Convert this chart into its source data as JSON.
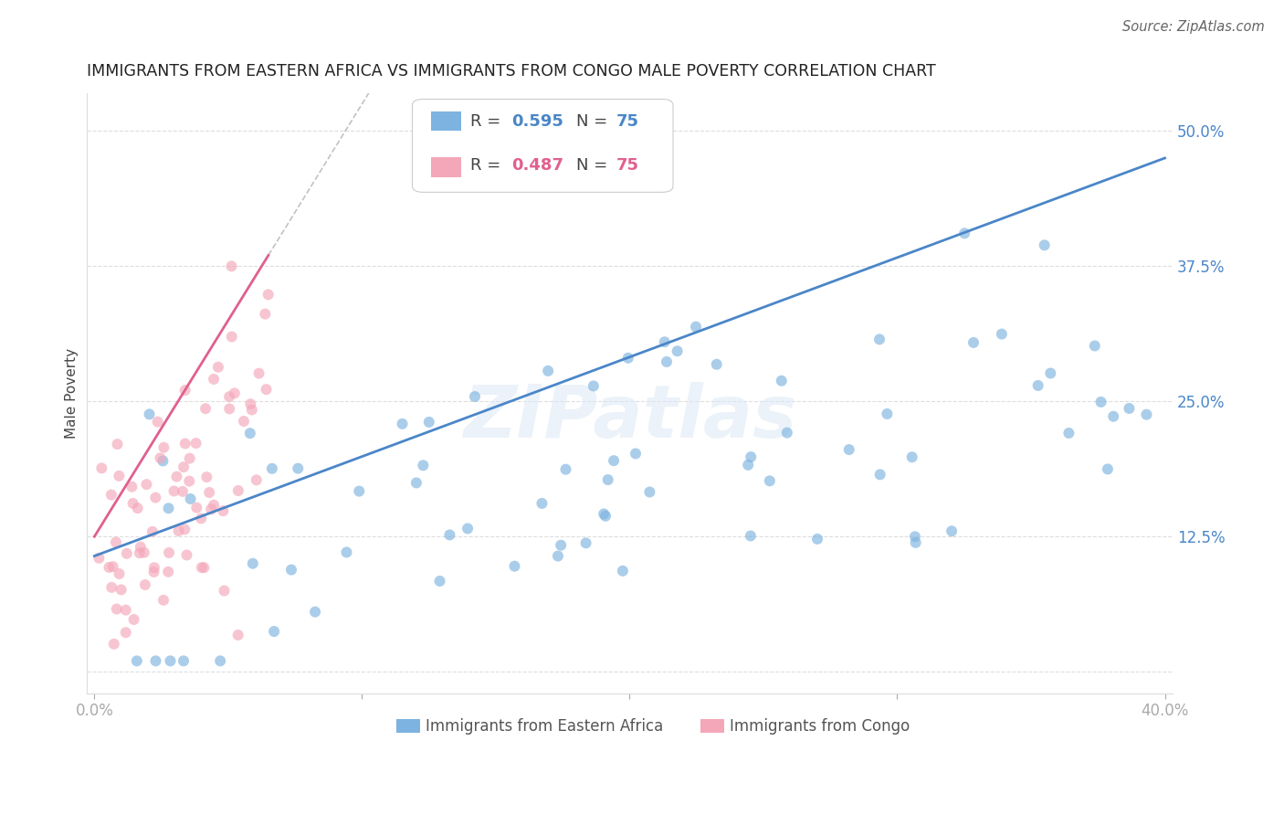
{
  "title": "IMMIGRANTS FROM EASTERN AFRICA VS IMMIGRANTS FROM CONGO MALE POVERTY CORRELATION CHART",
  "source": "Source: ZipAtlas.com",
  "ylabel": "Male Poverty",
  "blue_color": "#7db3e0",
  "pink_color": "#f4a7b9",
  "blue_line_color": "#4a86c8",
  "pink_line_color": "#e06090",
  "blue_R": "0.595",
  "blue_N": "75",
  "pink_R": "0.487",
  "pink_N": "75",
  "watermark": "ZIPatlas",
  "xlim": [
    0.0,
    0.4
  ],
  "ylim": [
    0.0,
    0.52
  ],
  "seed": 12
}
